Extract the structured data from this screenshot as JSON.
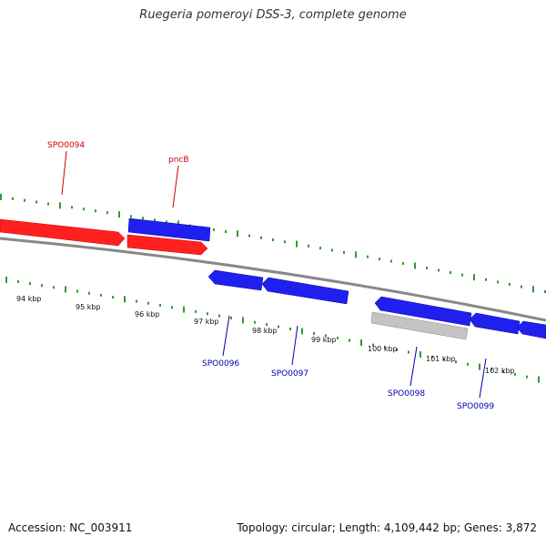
{
  "title": "Ruegeria pomeroyi DSS-3, complete genome",
  "footer": {
    "accession_label": "Accession:",
    "accession": "NC_003911",
    "topology_label": "Topology:",
    "topology": "circular",
    "length_label": "Length:",
    "length": "4,109,442 bp",
    "genes_label": "Genes:",
    "genes": "3,872"
  },
  "colors": {
    "forward_gene": "#ff2020",
    "reverse_gene": "#2020ee",
    "other_feature": "#bbbbbb",
    "backbone": "#888888",
    "tick": "#339933"
  },
  "kbp_labels": [
    "94 kbp",
    "95 kbp",
    "96 kbp",
    "97 kbp",
    "98 kbp",
    "99 kbp",
    "100 kbp",
    "101 kbp",
    "102 kbp"
  ],
  "gene_labels": {
    "SPO0094": "SPO0094",
    "pncB": "pncB",
    "SPO0096": "SPO0096",
    "SPO0097": "SPO0097",
    "SPO0098": "SPO0098",
    "SPO0099": "SPO0099"
  }
}
